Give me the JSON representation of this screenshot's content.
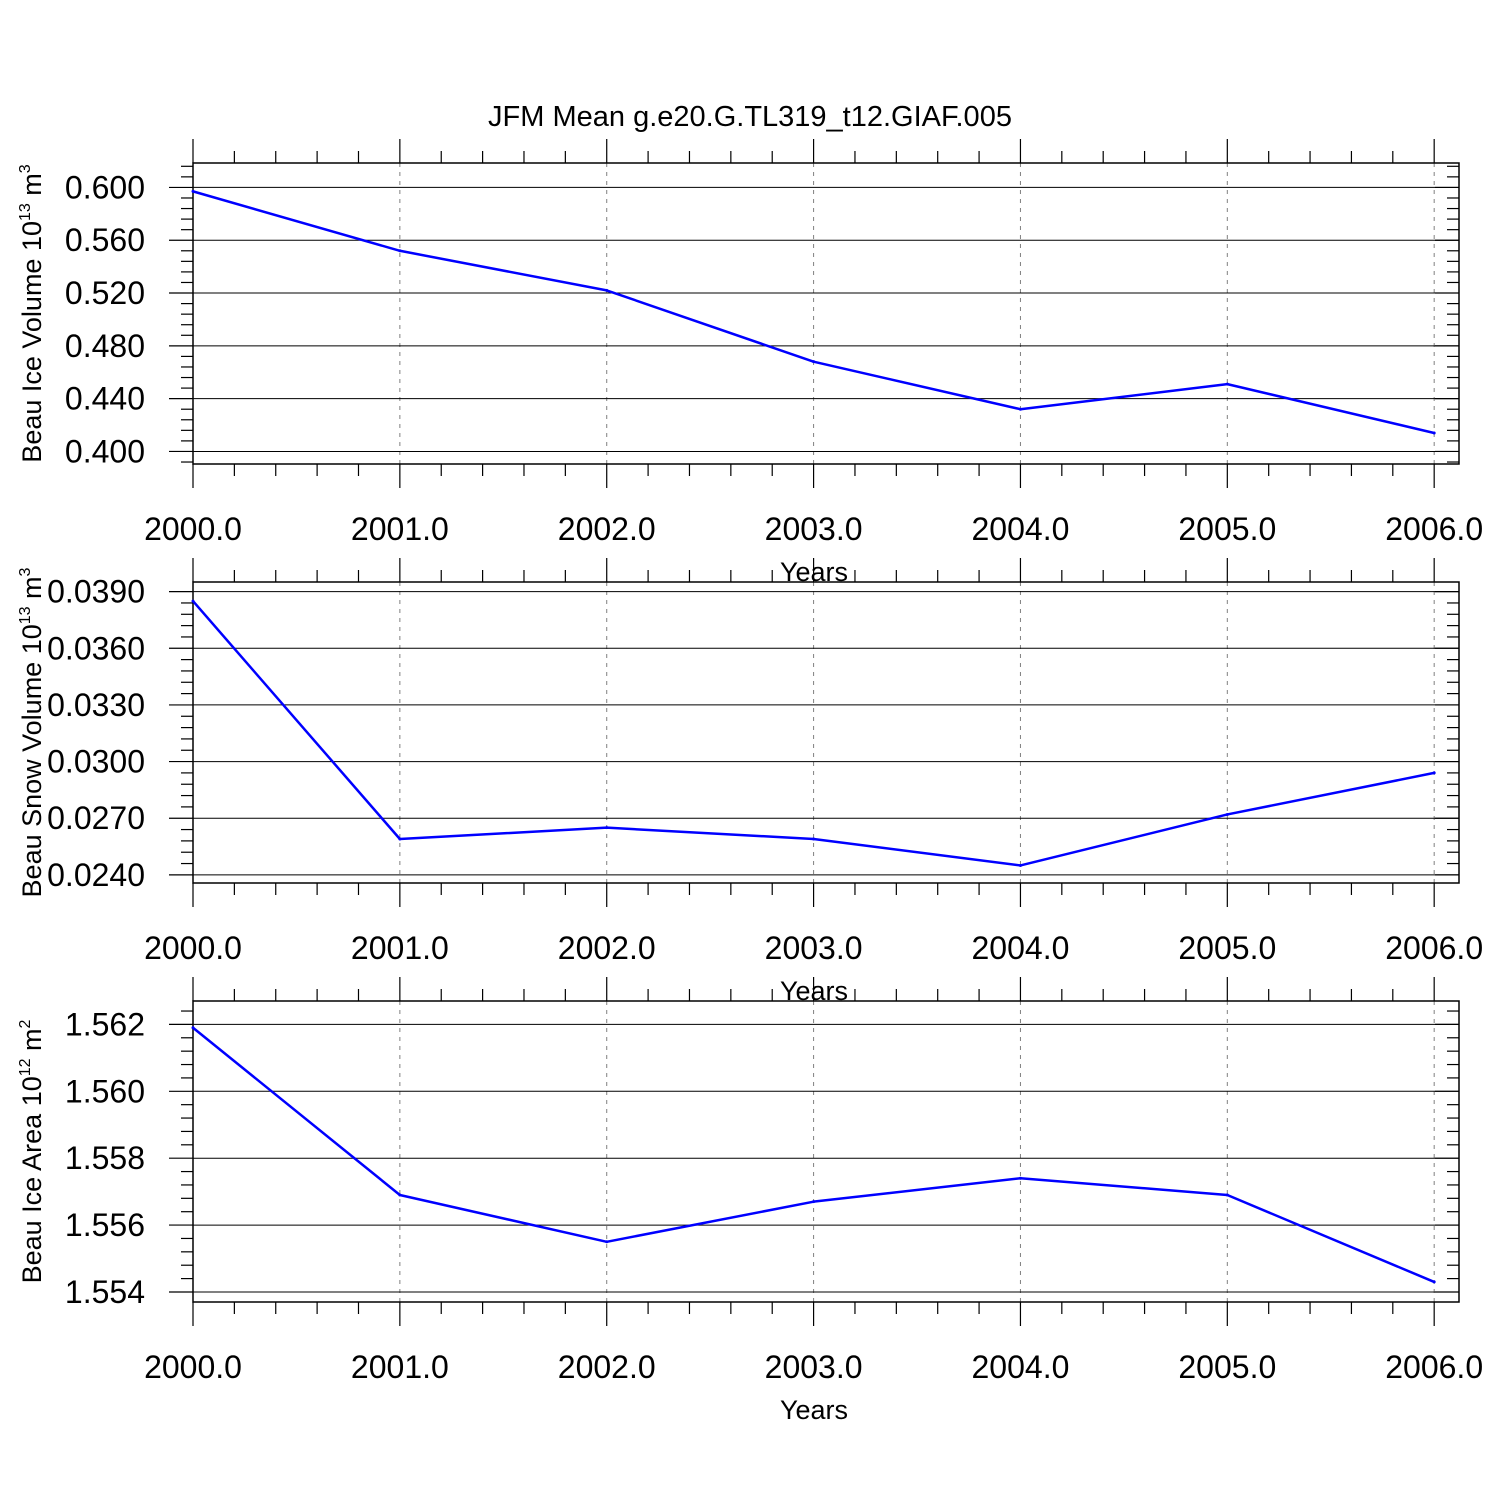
{
  "title": "JFM Mean g.e20.G.TL319_t12.GIAF.005",
  "colors": {
    "series": "#0000ff",
    "axes": "#000000",
    "grid": "#808080",
    "background": "#ffffff"
  },
  "chart_data": [
    {
      "type": "line",
      "xlabel": "Years",
      "ylabel": {
        "text": "Beau Ice Volume 10",
        "exponent": "13",
        "unit": " m",
        "unit_exponent": "3"
      },
      "x": [
        2000,
        2001,
        2002,
        2003,
        2004,
        2005,
        2006
      ],
      "series": [
        {
          "values": [
            0.597,
            0.552,
            0.522,
            0.468,
            0.432,
            0.451,
            0.414
          ]
        }
      ],
      "xlim": [
        2000,
        2006.12
      ],
      "ylim": [
        0.3905,
        0.6185
      ],
      "x_ticks": [
        "2000.0",
        "2001.0",
        "2002.0",
        "2003.0",
        "2004.0",
        "2005.0",
        "2006.0"
      ],
      "y_ticks": [
        "0.400",
        "0.440",
        "0.480",
        "0.520",
        "0.560",
        "0.600"
      ],
      "y_tick_values": [
        0.4,
        0.44,
        0.48,
        0.52,
        0.56,
        0.6
      ],
      "x_minor_step": 0.2,
      "y_minor_step": 0.008,
      "grid": "vertical dashed at major x ticks"
    },
    {
      "type": "line",
      "xlabel": "Years",
      "ylabel": {
        "text": "Beau Snow Volume 10",
        "exponent": "13",
        "unit": " m",
        "unit_exponent": "3"
      },
      "x": [
        2000,
        2001,
        2002,
        2003,
        2004,
        2005,
        2006
      ],
      "series": [
        {
          "values": [
            0.0385,
            0.0259,
            0.0265,
            0.0259,
            0.0245,
            0.0272,
            0.0294
          ]
        }
      ],
      "xlim": [
        2000,
        2006.12
      ],
      "ylim": [
        0.02357,
        0.03951
      ],
      "x_ticks": [
        "2000.0",
        "2001.0",
        "2002.0",
        "2003.0",
        "2004.0",
        "2005.0",
        "2006.0"
      ],
      "y_ticks": [
        "0.0240",
        "0.0270",
        "0.0300",
        "0.0330",
        "0.0360",
        "0.0390"
      ],
      "y_tick_values": [
        0.024,
        0.027,
        0.03,
        0.033,
        0.036,
        0.039
      ],
      "x_minor_step": 0.2,
      "y_minor_step": 0.0006,
      "grid": "vertical dashed at major x ticks"
    },
    {
      "type": "line",
      "xlabel": "Years",
      "ylabel": {
        "text": "Beau Ice Area 10",
        "exponent": "12",
        "unit": " m",
        "unit_exponent": "2"
      },
      "x": [
        2000,
        2001,
        2002,
        2003,
        2004,
        2005,
        2006
      ],
      "series": [
        {
          "values": [
            1.5619,
            1.5569,
            1.5555,
            1.5567,
            1.5574,
            1.5569,
            1.5543
          ]
        }
      ],
      "xlim": [
        2000,
        2006.12
      ],
      "ylim": [
        1.5537,
        1.5627
      ],
      "x_ticks": [
        "2000.0",
        "2001.0",
        "2002.0",
        "2003.0",
        "2004.0",
        "2005.0",
        "2006.0"
      ],
      "y_ticks": [
        "1.554",
        "1.556",
        "1.558",
        "1.560",
        "1.562"
      ],
      "y_tick_values": [
        1.554,
        1.556,
        1.558,
        1.56,
        1.562
      ],
      "x_minor_step": 0.2,
      "y_minor_step": 0.0004,
      "grid": "vertical dashed at major x ticks"
    }
  ]
}
